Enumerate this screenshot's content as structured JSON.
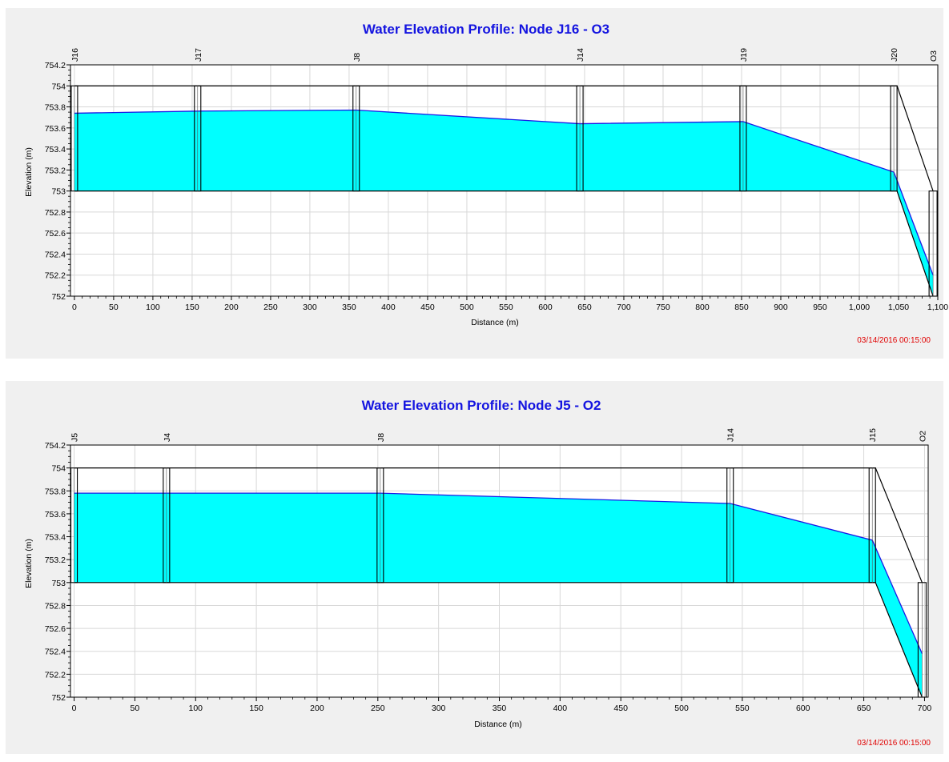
{
  "chart_data": [
    {
      "type": "area",
      "title": "Water Elevation Profile:  Node J16 - O3",
      "xlabel": "Distance (m)",
      "ylabel": "Elevation (m)",
      "xlim": [
        -5,
        1100
      ],
      "ylim": [
        752,
        754.2
      ],
      "x_ticks": [
        0,
        50,
        100,
        150,
        200,
        250,
        300,
        350,
        400,
        450,
        500,
        550,
        600,
        650,
        700,
        750,
        800,
        850,
        900,
        950,
        1000,
        1050,
        1100
      ],
      "x_tick_labels": [
        "0",
        "50",
        "100",
        "150",
        "200",
        "250",
        "300",
        "350",
        "400",
        "450",
        "500",
        "550",
        "600",
        "650",
        "700",
        "750",
        "800",
        "850",
        "900",
        "950",
        "1,000",
        "1,050",
        "1,100"
      ],
      "y_ticks": [
        752,
        752.2,
        752.4,
        752.6,
        752.8,
        753,
        753.2,
        753.4,
        753.6,
        753.8,
        754,
        754.2
      ],
      "y_tick_labels": [
        "752",
        "752.2",
        "752.4",
        "752.6",
        "752.8",
        "753",
        "753.2",
        "753.4",
        "753.6",
        "753.8",
        "754",
        "754.2"
      ],
      "grid": true,
      "nodes": [
        {
          "name": "J16",
          "x": 0,
          "invert": 753.0,
          "top": 754.0
        },
        {
          "name": "J17",
          "x": 157,
          "invert": 753.0,
          "top": 754.0
        },
        {
          "name": "J8",
          "x": 359,
          "invert": 753.0,
          "top": 754.0
        },
        {
          "name": "J14",
          "x": 644,
          "invert": 753.0,
          "top": 754.0
        },
        {
          "name": "J19",
          "x": 852,
          "invert": 753.0,
          "top": 754.0
        },
        {
          "name": "J20",
          "x": 1044,
          "invert": 753.0,
          "top": 754.0
        },
        {
          "name": "O3",
          "x": 1094,
          "invert": 752.0,
          "top": 753.0
        }
      ],
      "water_surface": [
        {
          "x": 0,
          "y": 753.74
        },
        {
          "x": 157,
          "y": 753.76
        },
        {
          "x": 359,
          "y": 753.77
        },
        {
          "x": 644,
          "y": 753.64
        },
        {
          "x": 852,
          "y": 753.66
        },
        {
          "x": 1044,
          "y": 753.18
        },
        {
          "x": 1094,
          "y": 752.2
        }
      ],
      "timestamp": "03/14/2016 00:15:00",
      "colors": {
        "water": "#00ffff",
        "water_line": "#1a1ae6",
        "title": "#1414e0",
        "timestamp": "#e00000"
      }
    },
    {
      "type": "area",
      "title": "Water Elevation Profile:  Node J5 - O2",
      "xlabel": "Distance (m)",
      "ylabel": "Elevation (m)",
      "xlim": [
        -3,
        703
      ],
      "ylim": [
        752,
        754.2
      ],
      "x_ticks": [
        0,
        50,
        100,
        150,
        200,
        250,
        300,
        350,
        400,
        450,
        500,
        550,
        600,
        650,
        700
      ],
      "x_tick_labels": [
        "0",
        "50",
        "100",
        "150",
        "200",
        "250",
        "300",
        "350",
        "400",
        "450",
        "500",
        "550",
        "600",
        "650",
        "700"
      ],
      "y_ticks": [
        752,
        752.2,
        752.4,
        752.6,
        752.8,
        753,
        753.2,
        753.4,
        753.6,
        753.8,
        754,
        754.2
      ],
      "y_tick_labels": [
        "752",
        "752.2",
        "752.4",
        "752.6",
        "752.8",
        "753",
        "753.2",
        "753.4",
        "753.6",
        "753.8",
        "754",
        "754.2"
      ],
      "grid": true,
      "nodes": [
        {
          "name": "J5",
          "x": 0,
          "invert": 753.0,
          "top": 754.0
        },
        {
          "name": "J4",
          "x": 76,
          "invert": 753.0,
          "top": 754.0
        },
        {
          "name": "J8",
          "x": 252,
          "invert": 753.0,
          "top": 754.0
        },
        {
          "name": "J14",
          "x": 540,
          "invert": 753.0,
          "top": 754.0
        },
        {
          "name": "J15",
          "x": 657,
          "invert": 753.0,
          "top": 754.0
        },
        {
          "name": "O2",
          "x": 698,
          "invert": 752.0,
          "top": 753.0
        }
      ],
      "water_surface": [
        {
          "x": 0,
          "y": 753.78
        },
        {
          "x": 76,
          "y": 753.78
        },
        {
          "x": 252,
          "y": 753.78
        },
        {
          "x": 540,
          "y": 753.69
        },
        {
          "x": 657,
          "y": 753.37
        },
        {
          "x": 698,
          "y": 752.38
        }
      ],
      "timestamp": "03/14/2016 00:15:00",
      "colors": {
        "water": "#00ffff",
        "water_line": "#1a1ae6",
        "title": "#1414e0",
        "timestamp": "#e00000"
      }
    }
  ]
}
